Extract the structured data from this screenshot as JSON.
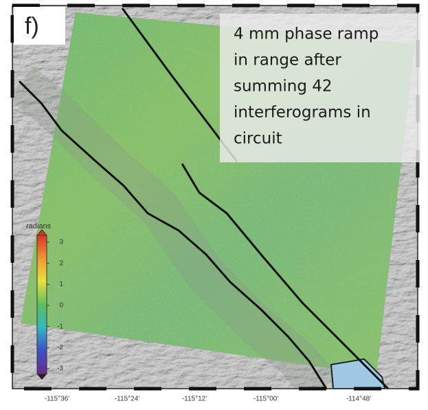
{
  "panel_label": "f)",
  "annotation": [
    "4 mm phase ramp",
    "in range after",
    "summing 42",
    "interferograms in",
    "circuit"
  ],
  "colorbar": {
    "title": "radians",
    "ticks": [
      3,
      2,
      1,
      0,
      -1,
      -2,
      -3
    ]
  },
  "x_axis_labels": [
    "-115°36'",
    "-115°24'",
    "-115°12'",
    "-115°00'",
    "-114°48'"
  ]
}
